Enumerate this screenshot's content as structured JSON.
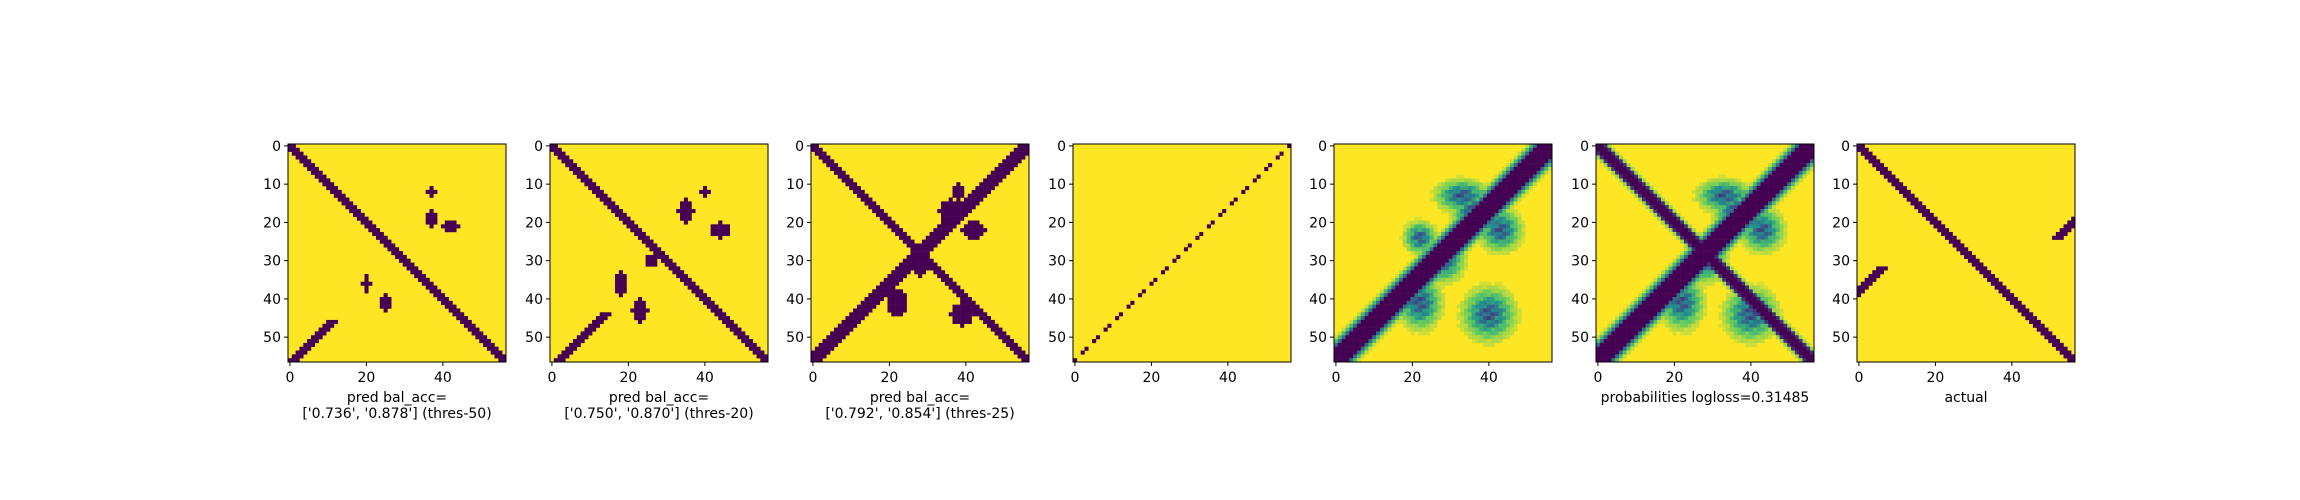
{
  "colors": {
    "low": "#440154",
    "high": "#fde725",
    "mid1": "#31688e",
    "mid2": "#35b779",
    "mid3": "#90d743"
  },
  "chart_data": [
    {
      "type": "heatmap",
      "grid_size": 57,
      "style": "binary",
      "xticks": [
        "0",
        "20",
        "40"
      ],
      "yticks": [
        "0",
        "10",
        "20",
        "30",
        "40",
        "50"
      ],
      "xlabel_lines": [
        "pred bal_acc=",
        "['0.736', '0.878'] (thres-50)"
      ],
      "diagonals": [
        {
          "kind": "main",
          "half_width": 1.2
        }
      ],
      "antidiagonals": [
        {
          "start_row": 0,
          "end_row": 8,
          "offset": 74,
          "half_width": 1.0
        },
        {
          "start_row": 46,
          "end_row": 56,
          "offset": 57,
          "half_width": 1.3
        }
      ],
      "blobs": [
        [
          19,
          37,
          2,
          1.5
        ],
        [
          21,
          42,
          1.5,
          2
        ],
        [
          36,
          20,
          2,
          1
        ],
        [
          41,
          25,
          2,
          1.5
        ],
        [
          12,
          37,
          1,
          1
        ]
      ]
    },
    {
      "type": "heatmap",
      "grid_size": 57,
      "style": "binary",
      "xticks": [
        "0",
        "20",
        "40"
      ],
      "yticks": [
        "0",
        "10",
        "20",
        "30",
        "40",
        "50"
      ],
      "xlabel_lines": [
        "pred bal_acc=",
        "['0.750', '0.870'] (thres-20)"
      ],
      "diagonals": [
        {
          "kind": "main",
          "half_width": 1.4
        }
      ],
      "antidiagonals": [
        {
          "start_row": 0,
          "end_row": 9,
          "offset": 76,
          "half_width": 1.1
        },
        {
          "start_row": 44,
          "end_row": 56,
          "offset": 58,
          "half_width": 1.4
        }
      ],
      "blobs": [
        [
          17,
          35,
          3,
          2
        ],
        [
          22,
          44,
          2,
          2.5
        ],
        [
          36,
          18,
          3,
          1.5
        ],
        [
          43,
          23,
          3,
          2
        ],
        [
          12,
          40,
          1.5,
          1
        ],
        [
          30,
          26,
          1.5,
          1.5
        ]
      ]
    },
    {
      "type": "heatmap",
      "grid_size": 57,
      "style": "binary",
      "xticks": [
        "0",
        "20",
        "40"
      ],
      "yticks": [
        "0",
        "10",
        "20",
        "30",
        "40",
        "50"
      ],
      "xlabel_lines": [
        "pred bal_acc=",
        "['0.792', '0.854'] (thres-25)"
      ],
      "diagonals": [
        {
          "kind": "main",
          "half_width": 1.8
        }
      ],
      "antidiagonals": [
        {
          "start_row": 0,
          "end_row": 56,
          "offset": 56,
          "half_width": 1.8
        }
      ],
      "blobs": [
        [
          17,
          36,
          3,
          3
        ],
        [
          22,
          42,
          2.5,
          3
        ],
        [
          41,
          22,
          3.5,
          2.5
        ],
        [
          44,
          39,
          3,
          3
        ],
        [
          12,
          38,
          2,
          1.5
        ],
        [
          32,
          28,
          2,
          2
        ]
      ]
    },
    {
      "type": "heatmap",
      "grid_size": 57,
      "style": "binary",
      "xticks": [
        "0",
        "20",
        "40"
      ],
      "yticks": [
        "0",
        "10",
        "20",
        "30",
        "40",
        "50"
      ],
      "xlabel_lines": [],
      "diagonals": [],
      "antidiagonals": [
        {
          "start_row": 0,
          "end_row": 56,
          "offset": 56,
          "half_width": 0.55,
          "sparse": true
        }
      ],
      "blobs": []
    },
    {
      "type": "heatmap",
      "grid_size": 57,
      "style": "continuous",
      "xticks": [
        "0",
        "20",
        "40"
      ],
      "yticks": [
        "0",
        "10",
        "20",
        "30",
        "40",
        "50"
      ],
      "xlabel_lines": [],
      "diagonals": [],
      "antidiagonals": [
        {
          "start_row": 0,
          "end_row": 56,
          "offset": 56,
          "half_width": 2.2
        }
      ],
      "blobs": [
        [
          17,
          36,
          4,
          4
        ],
        [
          22,
          43,
          4,
          4
        ],
        [
          41,
          22,
          5,
          4
        ],
        [
          44,
          40,
          5,
          5
        ],
        [
          13,
          33,
          3,
          5
        ],
        [
          30,
          28,
          4,
          4
        ],
        [
          24,
          22,
          3,
          3
        ]
      ]
    },
    {
      "type": "heatmap",
      "grid_size": 57,
      "style": "continuous-diag",
      "xticks": [
        "0",
        "20",
        "40"
      ],
      "yticks": [
        "0",
        "10",
        "20",
        "30",
        "40",
        "50"
      ],
      "xlabel_lines": [
        "probabilities logloss=0.31485"
      ],
      "diagonals": [
        {
          "kind": "main",
          "half_width": 1.6
        }
      ],
      "antidiagonals": [
        {
          "start_row": 0,
          "end_row": 56,
          "offset": 56,
          "half_width": 2.2
        }
      ],
      "blobs": [
        [
          17,
          36,
          4,
          4
        ],
        [
          22,
          43,
          4,
          4
        ],
        [
          41,
          22,
          5,
          4
        ],
        [
          44,
          40,
          5,
          5
        ],
        [
          13,
          33,
          3,
          5
        ],
        [
          30,
          28,
          4,
          4
        ]
      ]
    },
    {
      "type": "heatmap",
      "grid_size": 57,
      "style": "binary",
      "xticks": [
        "0",
        "20",
        "40"
      ],
      "yticks": [
        "0",
        "10",
        "20",
        "30",
        "40",
        "50"
      ],
      "xlabel_lines": [
        "actual"
      ],
      "diagonals": [
        {
          "kind": "main",
          "half_width": 1.6
        }
      ],
      "antidiagonals": [
        {
          "start_row": 0,
          "end_row": 24,
          "offset": 76,
          "half_width": 1.3
        },
        {
          "start_row": 32,
          "end_row": 56,
          "offset": 38,
          "half_width": 1.3
        }
      ],
      "blobs": []
    }
  ]
}
